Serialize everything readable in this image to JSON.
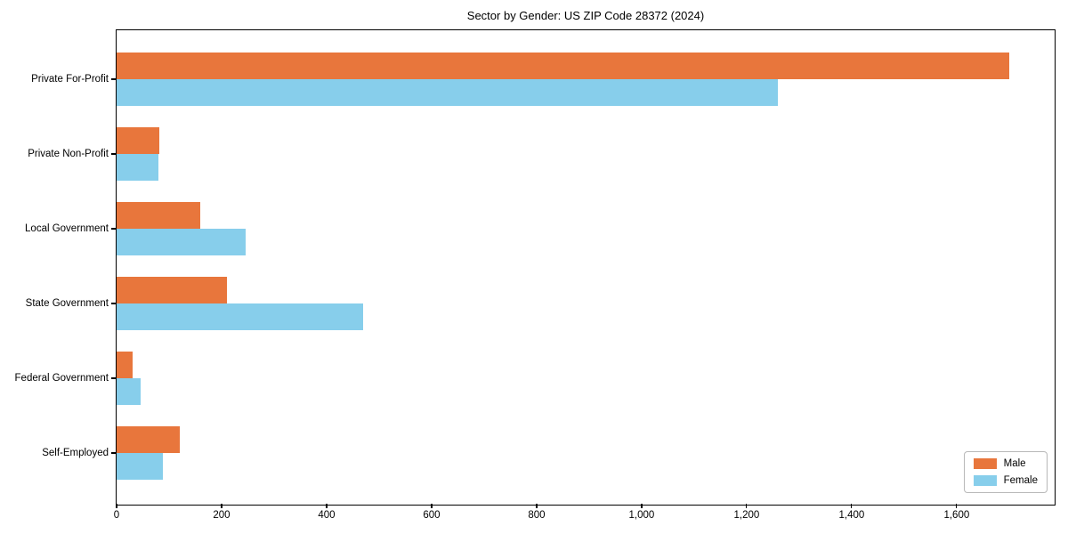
{
  "chart_data": {
    "type": "bar",
    "orientation": "horizontal",
    "title": "Sector by Gender: US ZIP Code 28372 (2024)",
    "categories": [
      "Private For-Profit",
      "Private Non-Profit",
      "Local Government",
      "State Government",
      "Federal Government",
      "Self-Employed"
    ],
    "series": [
      {
        "name": "Male",
        "color": "#e8763c",
        "values": [
          1700,
          82,
          160,
          210,
          30,
          120
        ]
      },
      {
        "name": "Female",
        "color": "#87ceeb",
        "values": [
          1260,
          80,
          245,
          470,
          45,
          88
        ]
      }
    ],
    "xlabel": "",
    "ylabel": "",
    "xlim": [
      0,
      1785
    ],
    "x_ticks": [
      0,
      200,
      400,
      600,
      800,
      1000,
      1200,
      1400,
      1600
    ],
    "x_tick_labels": [
      "0",
      "200",
      "400",
      "600",
      "800",
      "1,000",
      "1,200",
      "1,400",
      "1,600"
    ],
    "grid": false,
    "legend_position": "lower right",
    "frame_color": "#000000",
    "background_color": "#ffffff"
  }
}
